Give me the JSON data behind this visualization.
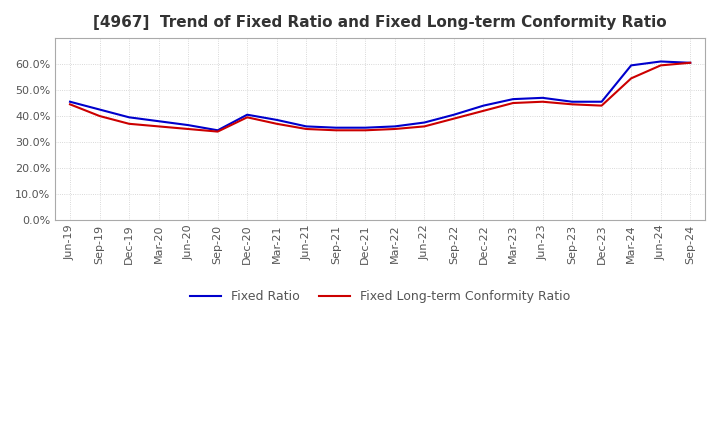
{
  "title": "[4967]  Trend of Fixed Ratio and Fixed Long-term Conformity Ratio",
  "x_labels": [
    "Jun-19",
    "Sep-19",
    "Dec-19",
    "Mar-20",
    "Jun-20",
    "Sep-20",
    "Dec-20",
    "Mar-21",
    "Jun-21",
    "Sep-21",
    "Dec-21",
    "Mar-22",
    "Jun-22",
    "Sep-22",
    "Dec-22",
    "Mar-23",
    "Jun-23",
    "Sep-23",
    "Dec-23",
    "Mar-24",
    "Jun-24",
    "Sep-24"
  ],
  "fixed_ratio": [
    0.455,
    0.425,
    0.395,
    0.38,
    0.365,
    0.345,
    0.405,
    0.385,
    0.36,
    0.355,
    0.355,
    0.36,
    0.375,
    0.405,
    0.44,
    0.465,
    0.47,
    0.455,
    0.455,
    0.595,
    0.61,
    0.605
  ],
  "fixed_lt_ratio": [
    0.445,
    0.4,
    0.37,
    0.36,
    0.35,
    0.34,
    0.395,
    0.37,
    0.35,
    0.345,
    0.345,
    0.35,
    0.36,
    0.39,
    0.42,
    0.45,
    0.455,
    0.445,
    0.44,
    0.545,
    0.595,
    0.605
  ],
  "fixed_ratio_color": "#0000cc",
  "fixed_lt_ratio_color": "#cc0000",
  "ylim": [
    0.0,
    0.7
  ],
  "yticks": [
    0.0,
    0.1,
    0.2,
    0.3,
    0.4,
    0.5,
    0.6
  ],
  "legend_fixed": "Fixed Ratio",
  "legend_fixed_lt": "Fixed Long-term Conformity Ratio",
  "line_width": 1.5,
  "background_color": "#ffffff",
  "grid_color": "#cccccc",
  "grid_style": ":"
}
